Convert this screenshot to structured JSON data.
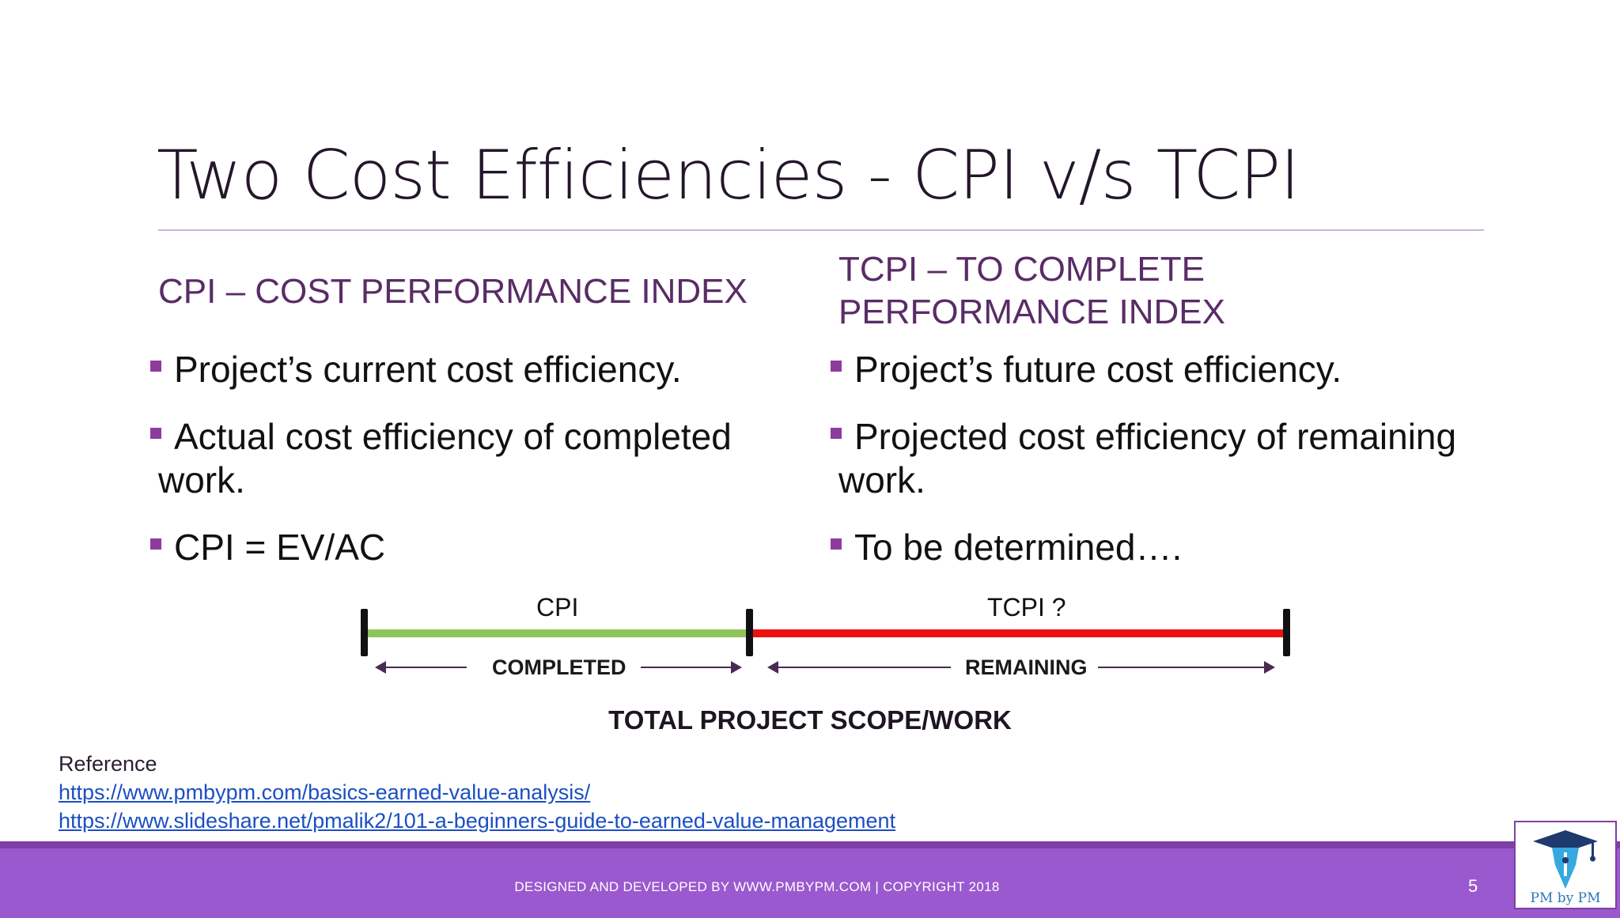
{
  "slide": {
    "title": "Two Cost Efficiencies - CPI v/s TCPI",
    "page_number": "5"
  },
  "left_column": {
    "heading": "CPI – COST PERFORMANCE INDEX",
    "bullets": [
      "Project’s current cost efficiency.",
      "Actual cost efficiency of completed work.",
      "CPI = EV/AC"
    ]
  },
  "right_column": {
    "heading": "TCPI – TO COMPLETE PERFORMANCE INDEX",
    "bullets": [
      "Project’s future cost efficiency.",
      "Projected cost efficiency of remaining work.",
      "To be determined…."
    ]
  },
  "diagram": {
    "completed_share": 0.417,
    "segments": [
      {
        "label": "CPI",
        "phase": "COMPLETED",
        "color": "#8fc45a"
      },
      {
        "label": "TCPI ?",
        "phase": "REMAINING",
        "color": "#ee1111"
      }
    ],
    "scope_label": "TOTAL PROJECT SCOPE/WORK"
  },
  "reference": {
    "label": "Reference",
    "links": [
      "https://www.pmbypm.com/basics-earned-value-analysis/",
      "https://www.slideshare.net/pmalik2/101-a-beginners-guide-to-earned-value-management"
    ]
  },
  "footer": {
    "text": "DESIGNED AND DEVELOPED BY WWW.PMBYPM.COM | COPYRIGHT 2018",
    "logo_text": "PM by PM",
    "accent_color": "#9b59cf"
  },
  "icons": {
    "bullet": "square-bullet-icon",
    "logo": "pen-graduation-cap-icon"
  }
}
